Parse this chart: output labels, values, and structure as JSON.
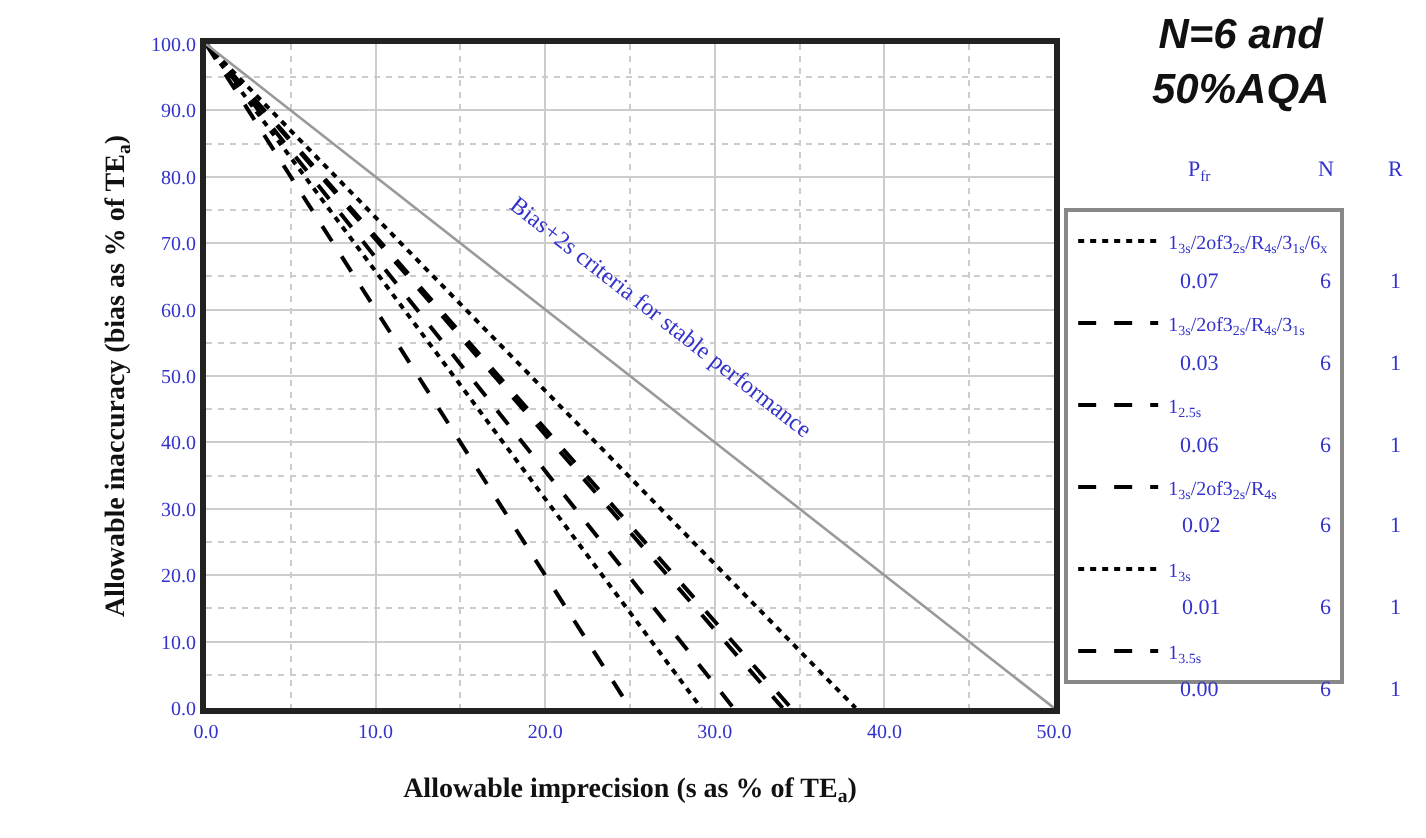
{
  "chart_data": {
    "type": "line",
    "title": "N=6 and 50%AQA",
    "xlabel": "Allowable imprecision (s as % of TE$_{a}$)",
    "ylabel": "Allowable inaccuracy (bias as % of TE$_{a}$)",
    "xlim": [
      0,
      50
    ],
    "xticks": [
      {
        "value": 0,
        "label": "0.0"
      },
      {
        "value": 10,
        "label": "10.0"
      },
      {
        "value": 20,
        "label": "20.0"
      },
      {
        "value": 30,
        "label": "30.0"
      },
      {
        "value": 40,
        "label": "40.0"
      },
      {
        "value": 50,
        "label": "50.0"
      }
    ],
    "ylim": [
      0,
      100
    ],
    "yticks": [
      {
        "value": 0,
        "label": "0.0"
      },
      {
        "value": 10,
        "label": "10.0"
      },
      {
        "value": 20,
        "label": "20.0"
      },
      {
        "value": 30,
        "label": "30.0"
      },
      {
        "value": 40,
        "label": "40.0"
      },
      {
        "value": 50,
        "label": "50.0"
      },
      {
        "value": 60,
        "label": "60.0"
      },
      {
        "value": 70,
        "label": "70.0"
      },
      {
        "value": 80,
        "label": "80.0"
      },
      {
        "value": 90,
        "label": "90.0"
      },
      {
        "value": 100,
        "label": "100.0"
      }
    ],
    "grid": true,
    "legend": "right",
    "marker": "none",
    "series": [
      {
        "name": "1$_{3s}$/2of3$_{2s}$/R$_{4s}$/3$_{1s}$/6$_{x}$",
        "color": "#000000",
        "line_style": "dotted",
        "x": [
          0,
          38.3
        ],
        "values": [
          100,
          0
        ]
      },
      {
        "name": "1$_{3s}$/2of3$_{2s}$/R$_{4s}$/3$_{1s}$",
        "color": "#000000",
        "line_style": "dashed",
        "x": [
          0,
          34.5
        ],
        "values": [
          100,
          0
        ]
      },
      {
        "name": "1$_{2.5s}$",
        "color": "#000000",
        "line_style": "dashed",
        "x": [
          0,
          34.0
        ],
        "values": [
          100,
          0
        ]
      },
      {
        "name": "1$_{3s}$/2of3$_{2s}$/R$_{4s}$",
        "color": "#000000",
        "line_style": "dashed",
        "x": [
          0,
          31.1
        ],
        "values": [
          100,
          0
        ]
      },
      {
        "name": "1$_{3s}$",
        "color": "#000000",
        "line_style": "dotted",
        "x": [
          0,
          29.2
        ],
        "values": [
          100,
          0
        ]
      },
      {
        "name": "1$_{3.5s}$",
        "color": "#000000",
        "line_style": "dashed",
        "x": [
          0,
          25.0
        ],
        "values": [
          100,
          0
        ]
      },
      {
        "color": "#999999",
        "line_style": "solid",
        "x": [
          0,
          50
        ],
        "values": [
          100,
          0
        ]
      }
    ],
    "annotations": [
      "Bias+2s criteria for stable performance",
      "P$_{fr}$",
      "N",
      "R",
      "0.07",
      "6",
      "1",
      "0.03",
      "6",
      "1",
      "0.06",
      "6",
      "1",
      "0.02",
      "6",
      "1",
      "0.01",
      "6",
      "1",
      "0.00",
      "6",
      "1"
    ]
  }
}
